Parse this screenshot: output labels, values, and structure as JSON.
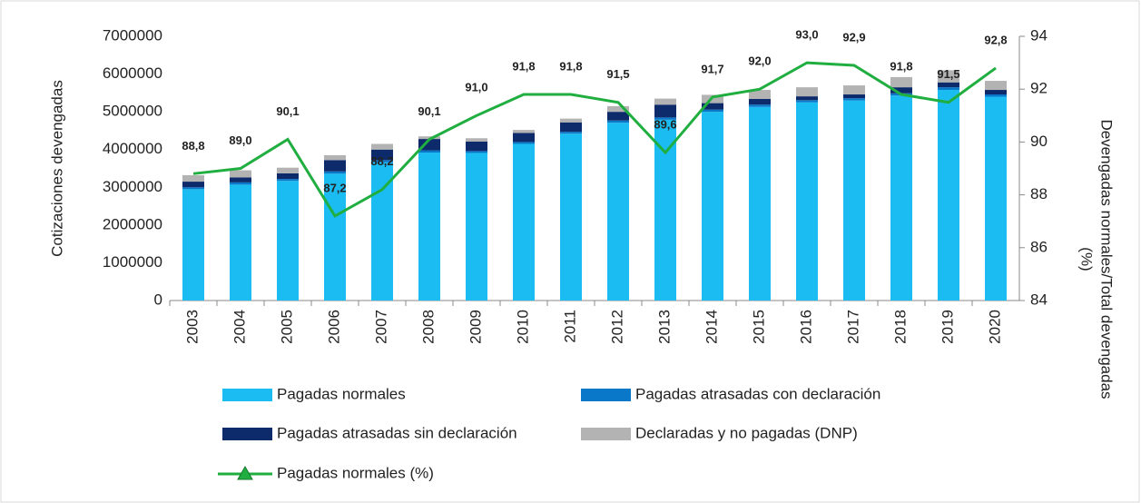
{
  "chart_data": {
    "type": "stacked_bar_line",
    "y_label": "Cotizaciones devengadas",
    "y2_label": [
      "Devengadas normales/Total devengadas",
      "(%)"
    ],
    "categories": [
      "2003",
      "2004",
      "2005",
      "2006",
      "2007",
      "2008",
      "2009",
      "2010",
      "2011",
      "2012",
      "2013",
      "2014",
      "2015",
      "2016",
      "2017",
      "2018",
      "2019",
      "2020"
    ],
    "ylim": [
      0,
      7000000
    ],
    "yticks": [
      0,
      1000000,
      2000000,
      3000000,
      4000000,
      5000000,
      6000000,
      7000000
    ],
    "y2lim": [
      84,
      94
    ],
    "y2ticks": [
      84,
      86,
      88,
      90,
      92,
      94
    ],
    "series": [
      {
        "name": "Pagadas normales",
        "color": "#1bbcf1",
        "values": [
          2950000,
          3070000,
          3170000,
          3360000,
          3660000,
          3920000,
          3910000,
          4150000,
          4420000,
          4710000,
          4790000,
          5000000,
          5130000,
          5250000,
          5300000,
          5430000,
          5580000,
          5400000
        ]
      },
      {
        "name": "Pagadas atrasadas con declaración",
        "color": "#0a78c8",
        "values": [
          50000,
          60000,
          50000,
          60000,
          60000,
          60000,
          50000,
          50000,
          50000,
          60000,
          60000,
          60000,
          60000,
          60000,
          60000,
          60000,
          70000,
          60000
        ]
      },
      {
        "name": "Pagadas atrasadas sin declaración",
        "color": "#0d2a6b",
        "values": [
          150000,
          130000,
          150000,
          300000,
          280000,
          300000,
          250000,
          240000,
          250000,
          230000,
          340000,
          170000,
          150000,
          100000,
          100000,
          160000,
          130000,
          120000
        ]
      },
      {
        "name": "Declaradas y no pagadas (DNP)",
        "color": "#b3b3b3",
        "values": [
          170000,
          190000,
          150000,
          130000,
          150000,
          70000,
          90000,
          80000,
          100000,
          150000,
          160000,
          220000,
          240000,
          240000,
          240000,
          270000,
          320000,
          240000
        ]
      },
      {
        "name": "Pagadas normales (%)",
        "color": "#1fae3f",
        "axis": "y2",
        "type": "line",
        "values": [
          88.8,
          89.0,
          90.1,
          87.2,
          88.2,
          90.1,
          91.0,
          91.8,
          91.8,
          91.5,
          89.6,
          91.7,
          92.0,
          93.0,
          92.9,
          91.8,
          91.5,
          92.8
        ],
        "value_labels": [
          "88,8",
          "89,0",
          "90,1",
          "87,2",
          "88,2",
          "90,1",
          "91,0",
          "91,8",
          "91,8",
          "91,5",
          "89,6",
          "91,7",
          "92,0",
          "93,0",
          "92,9",
          "91,8",
          "91,5",
          "92,8"
        ]
      }
    ]
  }
}
